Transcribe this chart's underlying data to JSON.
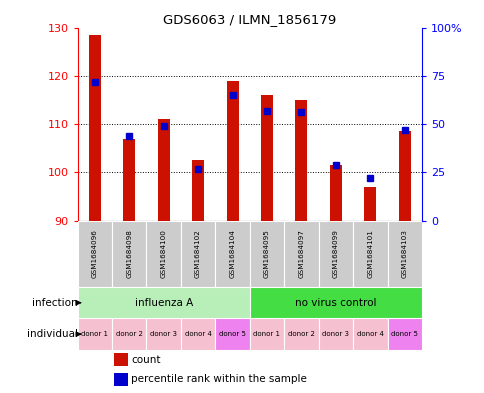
{
  "title": "GDS6063 / ILMN_1856179",
  "samples": [
    "GSM1684096",
    "GSM1684098",
    "GSM1684100",
    "GSM1684102",
    "GSM1684104",
    "GSM1684095",
    "GSM1684097",
    "GSM1684099",
    "GSM1684101",
    "GSM1684103"
  ],
  "counts": [
    128.5,
    107.0,
    111.0,
    102.5,
    119.0,
    116.0,
    115.0,
    101.5,
    97.0,
    108.5
  ],
  "percentiles": [
    72,
    44,
    49,
    27,
    65,
    57,
    56,
    29,
    22,
    47
  ],
  "ylim_left": [
    90,
    130
  ],
  "yticks_left": [
    90,
    100,
    110,
    120,
    130
  ],
  "ylim_right": [
    0,
    100
  ],
  "yticks_right": [
    0,
    25,
    50,
    75,
    100
  ],
  "yticklabels_right": [
    "0",
    "25",
    "50",
    "75",
    "100%"
  ],
  "infection_groups": [
    {
      "label": "influenza A",
      "start": 0,
      "end": 5,
      "color": "#B8EEB8"
    },
    {
      "label": "no virus control",
      "start": 5,
      "end": 10,
      "color": "#44DD44"
    }
  ],
  "individuals": [
    "donor 1",
    "donor 2",
    "donor 3",
    "donor 4",
    "donor 5",
    "donor 1",
    "donor 2",
    "donor 3",
    "donor 4",
    "donor 5"
  ],
  "ind_colors": [
    "#F5C0D0",
    "#F5C0D0",
    "#F5C0D0",
    "#F5C0D0",
    "#EE82EE",
    "#F5C0D0",
    "#F5C0D0",
    "#F5C0D0",
    "#F5C0D0",
    "#EE82EE"
  ],
  "bar_color": "#CC1100",
  "percentile_color": "#0000CC",
  "bar_width": 0.35,
  "sample_bg_color": "#CCCCCC",
  "legend_count_color": "#CC1100",
  "legend_percentile_color": "#0000CC"
}
